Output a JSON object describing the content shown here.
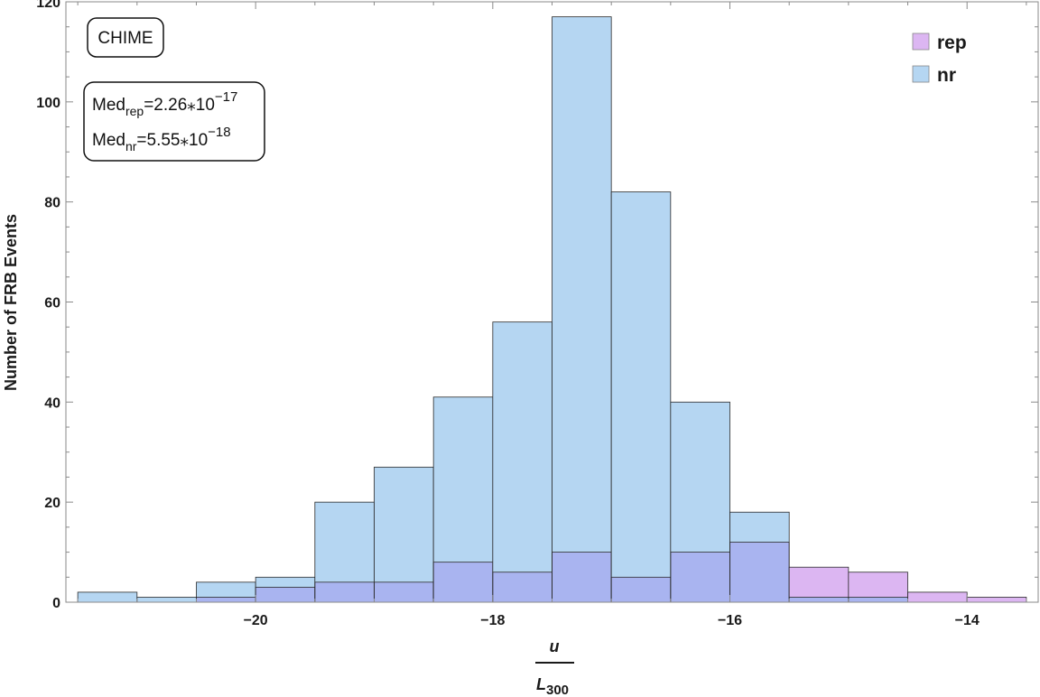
{
  "chart_data": {
    "type": "histogram",
    "title": "",
    "ylabel": "Number of FRB Events",
    "xlabel_numerator": "u",
    "xlabel_denominator": "L",
    "xlabel_denominator_sub": "300",
    "xlim": [
      -21.6,
      -13.4
    ],
    "ylim": [
      0,
      120
    ],
    "x_ticks": [
      -20,
      -18,
      -16,
      -14
    ],
    "y_ticks": [
      0,
      20,
      40,
      60,
      80,
      100,
      120
    ],
    "bin_width": 0.5,
    "bin_starts": [
      -21.5,
      -21.0,
      -20.5,
      -20.0,
      -19.5,
      -19.0,
      -18.5,
      -18.0,
      -17.5,
      -17.0,
      -16.5,
      -16.0,
      -15.5,
      -15.0,
      -14.5,
      -14.0
    ],
    "series": [
      {
        "name": "rep",
        "color": "#dcb6f2",
        "values": [
          0,
          0,
          1,
          3,
          4,
          4,
          8,
          6,
          10,
          5,
          10,
          12,
          7,
          6,
          2,
          1
        ]
      },
      {
        "name": "nr",
        "color": "#b5d6f2",
        "values": [
          2,
          1,
          4,
          5,
          20,
          27,
          41,
          56,
          117,
          82,
          40,
          18,
          1,
          1,
          0,
          0
        ]
      }
    ],
    "overlap_color": "#a9b4f0",
    "grid": false,
    "legend_position": "top-right",
    "annotation_box_1": "CHIME",
    "annotation_box_2": {
      "line1_prefix": "Med",
      "line1_sub": "rep",
      "line1_value": "=2.26⁎10",
      "line1_exp": "−17",
      "line2_prefix": "Med",
      "line2_sub": "nr",
      "line2_value": "=5.55⁎10",
      "line2_exp": "−18"
    }
  }
}
